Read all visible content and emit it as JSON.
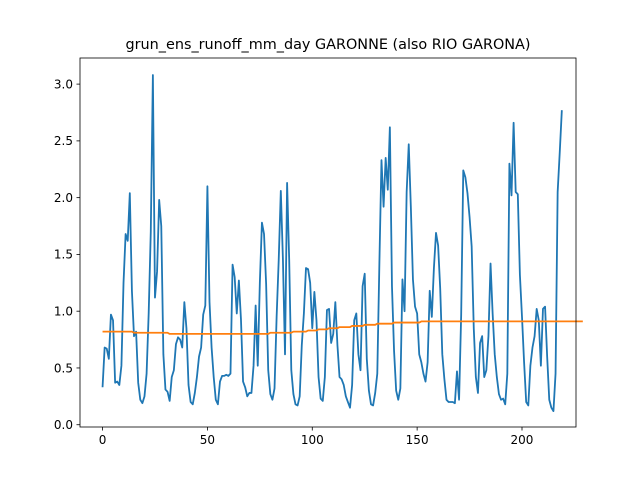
{
  "chart_data": {
    "type": "line",
    "title": "grun_ens_runoff_mm_day GARONNE (also RIO GARONA)",
    "xlabel": "",
    "ylabel": "",
    "xlim": [
      -10.75,
      225.75
    ],
    "ylim": [
      -0.02,
      3.23
    ],
    "xticks": [
      0,
      50,
      100,
      150,
      200
    ],
    "yticks": [
      0.0,
      0.5,
      1.0,
      1.5,
      2.0,
      2.5,
      3.0
    ],
    "ytick_labels": [
      "0.0",
      "0.5",
      "1.0",
      "1.5",
      "2.0",
      "2.5",
      "3.0"
    ],
    "grid": false,
    "legend": null,
    "series": [
      {
        "color": "#1f77b4",
        "values": [
          0.33,
          0.68,
          0.67,
          0.58,
          0.97,
          0.92,
          0.37,
          0.38,
          0.35,
          0.52,
          1.25,
          1.68,
          1.62,
          2.04,
          1.18,
          0.78,
          0.82,
          0.37,
          0.22,
          0.19,
          0.25,
          0.45,
          0.98,
          1.7,
          3.08,
          1.12,
          1.35,
          1.98,
          1.75,
          0.62,
          0.31,
          0.29,
          0.21,
          0.42,
          0.48,
          0.71,
          0.77,
          0.75,
          0.68,
          1.08,
          0.85,
          0.35,
          0.2,
          0.18,
          0.28,
          0.42,
          0.6,
          0.68,
          0.97,
          1.05,
          2.1,
          1.08,
          0.68,
          0.42,
          0.22,
          0.18,
          0.38,
          0.43,
          0.43,
          0.44,
          0.43,
          0.45,
          1.41,
          1.3,
          0.98,
          1.27,
          0.93,
          0.38,
          0.33,
          0.25,
          0.28,
          0.28,
          0.52,
          1.05,
          0.52,
          1.25,
          1.78,
          1.68,
          1.24,
          0.48,
          0.27,
          0.22,
          0.32,
          0.95,
          1.45,
          2.06,
          1.46,
          0.62,
          2.13,
          1.45,
          0.48,
          0.27,
          0.18,
          0.17,
          0.25,
          0.7,
          0.98,
          1.38,
          1.37,
          1.25,
          0.85,
          1.17,
          0.92,
          0.42,
          0.23,
          0.21,
          0.42,
          1.01,
          1.02,
          0.72,
          0.8,
          1.08,
          0.7,
          0.42,
          0.4,
          0.35,
          0.25,
          0.2,
          0.15,
          0.35,
          0.92,
          0.98,
          0.62,
          0.48,
          1.22,
          1.33,
          0.58,
          0.3,
          0.18,
          0.17,
          0.28,
          0.45,
          1.42,
          2.33,
          1.92,
          2.35,
          2.07,
          2.62,
          1.22,
          0.65,
          0.3,
          0.22,
          0.32,
          1.28,
          1.0,
          2.05,
          2.47,
          1.92,
          1.28,
          1.04,
          0.98,
          0.62,
          0.55,
          0.45,
          0.38,
          0.55,
          1.18,
          0.95,
          1.38,
          1.69,
          1.58,
          1.2,
          0.62,
          0.4,
          0.22,
          0.2,
          0.2,
          0.2,
          0.19,
          0.47,
          0.22,
          0.97,
          2.24,
          2.18,
          2.04,
          1.83,
          1.57,
          0.85,
          0.42,
          0.28,
          0.72,
          0.78,
          0.42,
          0.48,
          0.78,
          1.42,
          0.98,
          0.62,
          0.42,
          0.27,
          0.22,
          0.23,
          0.18,
          0.45,
          2.3,
          2.02,
          2.66,
          2.05,
          2.03,
          1.32,
          0.95,
          0.55,
          0.2,
          0.17,
          0.52,
          0.68,
          0.78,
          1.02,
          0.92,
          0.52,
          1.02,
          1.04,
          0.6,
          0.22,
          0.15,
          0.12,
          0.45,
          2.05,
          2.4,
          2.77
        ]
      },
      {
        "color": "#ff7f0e",
        "values": [
          0.82,
          0.82,
          0.82,
          0.82,
          0.82,
          0.82,
          0.82,
          0.82,
          0.82,
          0.82,
          0.82,
          0.82,
          0.82,
          0.82,
          0.82,
          0.81,
          0.81,
          0.81,
          0.81,
          0.81,
          0.81,
          0.81,
          0.81,
          0.81,
          0.81,
          0.81,
          0.81,
          0.81,
          0.81,
          0.81,
          0.81,
          0.81,
          0.8,
          0.8,
          0.8,
          0.8,
          0.8,
          0.8,
          0.8,
          0.8,
          0.8,
          0.8,
          0.8,
          0.8,
          0.8,
          0.8,
          0.8,
          0.8,
          0.8,
          0.8,
          0.8,
          0.8,
          0.8,
          0.8,
          0.8,
          0.8,
          0.8,
          0.8,
          0.8,
          0.8,
          0.8,
          0.8,
          0.8,
          0.8,
          0.8,
          0.8,
          0.8,
          0.8,
          0.8,
          0.8,
          0.8,
          0.8,
          0.8,
          0.8,
          0.8,
          0.8,
          0.8,
          0.8,
          0.8,
          0.8,
          0.81,
          0.81,
          0.81,
          0.81,
          0.81,
          0.81,
          0.81,
          0.81,
          0.81,
          0.81,
          0.81,
          0.82,
          0.82,
          0.82,
          0.82,
          0.82,
          0.82,
          0.82,
          0.83,
          0.83,
          0.83,
          0.83,
          0.83,
          0.84,
          0.84,
          0.84,
          0.84,
          0.84,
          0.85,
          0.85,
          0.85,
          0.85,
          0.85,
          0.86,
          0.86,
          0.86,
          0.86,
          0.86,
          0.86,
          0.87,
          0.87,
          0.87,
          0.87,
          0.87,
          0.87,
          0.88,
          0.88,
          0.88,
          0.88,
          0.88,
          0.88,
          0.89,
          0.89,
          0.89,
          0.89,
          0.89,
          0.89,
          0.89,
          0.89,
          0.9,
          0.9,
          0.9,
          0.9,
          0.9,
          0.9,
          0.9,
          0.9,
          0.9,
          0.9,
          0.9,
          0.9,
          0.9,
          0.91,
          0.91,
          0.91,
          0.91,
          0.91,
          0.91,
          0.91,
          0.91,
          0.91,
          0.91,
          0.91,
          0.91,
          0.91,
          0.91,
          0.91,
          0.91,
          0.91,
          0.91,
          0.91,
          0.91,
          0.91,
          0.91,
          0.91,
          0.91,
          0.91,
          0.91,
          0.91,
          0.91,
          0.91,
          0.91,
          0.91,
          0.91,
          0.91,
          0.91,
          0.91,
          0.91,
          0.91,
          0.91,
          0.91,
          0.91,
          0.91,
          0.91,
          0.91,
          0.91,
          0.91,
          0.91,
          0.91,
          0.91,
          0.91,
          0.91,
          0.91,
          0.91,
          0.91,
          0.91,
          0.91,
          0.91,
          0.91,
          0.91,
          0.91,
          0.91,
          0.91,
          0.91,
          0.91,
          0.91,
          0.91,
          0.91,
          0.91,
          0.91,
          0.91,
          0.91,
          0.91,
          0.91,
          0.91,
          0.91,
          0.91,
          0.91,
          0.91,
          0.91
        ]
      }
    ]
  }
}
